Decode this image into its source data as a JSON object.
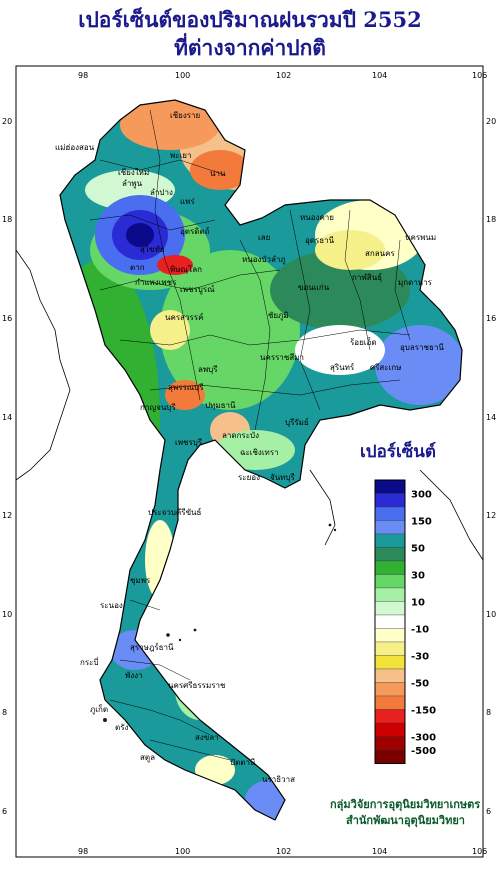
{
  "title_line1": "เปอร์เซ็นต์ของปริมาณฝนรวมปี 2552",
  "title_line2": "ที่ต่างจากค่าปกติ",
  "legend": {
    "title": "เปอร์เซ็นต์",
    "labels": [
      "300",
      "150",
      "50",
      "30",
      "10",
      "-10",
      "-30",
      "-50",
      "-150",
      "-300",
      "-500"
    ],
    "colors": [
      "#0a0a8a",
      "#2b2bd6",
      "#4a6ef0",
      "#6a8cf5",
      "#1a9a9a",
      "#2c8a5a",
      "#31b031",
      "#66d666",
      "#a6f0a6",
      "#d2f8d2",
      "#ffffff",
      "#ffffc8",
      "#f5f08a",
      "#f2e23a",
      "#f5c08a",
      "#f59a5a",
      "#f27a3a",
      "#e82020",
      "#cc0000",
      "#a00000",
      "#7a0000"
    ]
  },
  "axes": {
    "x_ticks": [
      "98",
      "100",
      "102",
      "104",
      "106"
    ],
    "y_ticks": [
      "20",
      "18",
      "16",
      "14",
      "12",
      "10",
      "8",
      "6"
    ]
  },
  "provinces": [
    "เชียงราย",
    "แม่ฮ่องสอน",
    "เชียงใหม่",
    "พะเยา",
    "ลำพูน",
    "น่าน",
    "ลำปาง",
    "แพร่",
    "ตาก",
    "อุตรดิตถ์",
    "พิษณุโลก",
    "สุโขทัย",
    "กำแพงเพชร",
    "เพชรบูรณ์",
    "หนองคาย",
    "อุดรธานี",
    "สกลนคร",
    "นครพนม",
    "มุกดาหาร",
    "เลย",
    "ขอนแก่น",
    "กาฬสินธุ์",
    "นครสวรรค์",
    "ชัยภูมิ",
    "ลพบุรี",
    "นครราชสีมา",
    "สุรินทร์",
    "ศรีสะเกษ",
    "อุบลราชธานี",
    "สุพรรณบุรี",
    "กาญจนบุรี",
    "ปทุมธานี",
    "ระยอง",
    "จันทบุรี",
    "เพชรบุรี",
    "ประจวบคีรีขันธ์",
    "ชุมพร",
    "ระนอง",
    "สุราษฎร์ธานี",
    "นครศรีธรรมราช",
    "พังงา",
    "กระบี่",
    "ภูเก็ต",
    "ตรัง",
    "สงขลา",
    "สตูล",
    "ปัตตานี",
    "นราธิวาส",
    "หนองบัวลำภู",
    "บุรีรัมย์",
    "ลาดกระบัง",
    "ฉะเชิงเทรา",
    "ร้อยเอ็ด"
  ],
  "credit_line1": "กลุ่มวิจัยการอุตุนิยมวิทยาเกษตร",
  "credit_line2": "สำนักพัฒนาอุตุนิยมวิทยา"
}
